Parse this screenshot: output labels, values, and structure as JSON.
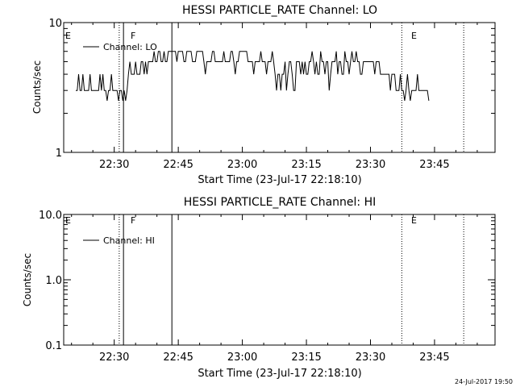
{
  "footer_timestamp": "24-Jul-2017 19:50",
  "chart_data": [
    {
      "type": "line",
      "title": "HESSI PARTICLE_RATE Channel: LO",
      "xlabel": "Start Time (23-Jul-17 22:18:10)",
      "ylabel": "Counts/sec",
      "yscale": "log",
      "ylim": [
        1,
        10
      ],
      "y_ticks": [
        {
          "value": 1,
          "label": "1"
        },
        {
          "value": 10,
          "label": "10"
        }
      ],
      "x_ticks": [
        "22:30",
        "22:45",
        "23:00",
        "23:15",
        "23:30",
        "23:45"
      ],
      "legend": {
        "placement": "top-left",
        "entries": [
          "Channel: LO"
        ]
      },
      "annotations": [
        "E",
        "F",
        "E"
      ],
      "series": [
        {
          "name": "Channel: LO",
          "x_start": "22:21",
          "x_step_seconds": 20,
          "values": [
            3,
            3,
            4,
            3,
            3,
            4,
            3,
            3,
            3,
            3,
            4,
            3,
            3,
            3,
            3,
            3,
            3,
            4,
            3,
            4,
            3,
            3,
            2.5,
            3,
            3,
            4,
            3,
            3,
            3,
            3,
            2.5,
            3,
            3,
            2.5,
            3,
            2.5,
            3,
            4,
            5,
            4,
            4,
            4,
            5,
            4,
            4,
            4,
            5,
            5,
            4,
            5,
            4,
            5,
            5,
            5,
            5,
            6,
            5,
            5,
            6,
            6,
            5,
            5,
            6,
            5,
            5,
            6,
            6,
            6,
            6,
            6,
            6,
            5,
            6,
            6,
            6,
            6,
            5,
            5,
            6,
            6,
            6,
            6,
            5,
            5,
            5,
            6,
            6,
            6,
            6,
            6,
            5,
            4,
            5,
            5,
            5,
            5,
            6,
            6,
            5,
            5,
            5,
            5,
            5,
            5,
            6,
            5,
            5,
            5,
            5,
            6,
            6,
            5,
            4,
            5,
            5,
            6,
            6,
            6,
            6,
            6,
            6,
            5,
            5,
            5,
            5,
            4,
            5,
            5,
            5,
            5,
            6,
            5,
            5,
            5,
            4,
            5,
            5,
            5,
            6,
            5,
            4,
            3,
            4,
            4,
            3,
            4,
            4,
            5,
            3,
            4,
            5,
            5,
            4,
            3,
            3,
            5,
            5,
            5,
            4,
            5,
            4,
            5,
            4,
            4,
            5,
            5,
            6,
            5,
            4,
            5,
            4,
            4,
            6,
            5,
            5,
            4,
            5,
            5,
            3,
            4,
            5,
            5,
            5,
            6,
            4,
            5,
            5,
            4,
            4,
            6,
            5,
            5,
            4,
            5,
            6,
            5,
            5,
            6,
            5,
            5,
            4,
            4,
            5,
            5,
            5,
            5,
            5,
            5,
            5,
            5,
            4,
            5,
            5,
            5,
            4,
            4,
            4,
            4,
            4,
            4,
            4,
            3,
            4,
            4,
            4,
            3,
            3,
            3,
            4,
            3,
            3,
            2.5,
            3,
            4,
            3,
            2.5,
            3,
            3,
            3,
            3,
            4,
            3,
            3,
            3,
            3,
            3,
            3,
            3,
            2.5
          ]
        }
      ],
      "vlines": [
        {
          "time": "22:31:10",
          "style": "dotted"
        },
        {
          "time": "22:32:10",
          "style": "solid"
        },
        {
          "time": "22:43:30",
          "style": "solid"
        },
        {
          "time": "23:37:20",
          "style": "dotted"
        },
        {
          "time": "23:51:50",
          "style": "dotted"
        }
      ]
    },
    {
      "type": "line",
      "title": "HESSI PARTICLE_RATE Channel: HI",
      "xlabel": "Start Time (23-Jul-17 22:18:10)",
      "ylabel": "Counts/sec",
      "yscale": "log",
      "ylim": [
        0.1,
        10
      ],
      "y_ticks": [
        {
          "value": 10,
          "label": "10.0"
        },
        {
          "value": 1,
          "label": "1.0"
        },
        {
          "value": 0.1,
          "label": "0.1"
        }
      ],
      "x_ticks": [
        "22:30",
        "22:45",
        "23:00",
        "23:15",
        "23:30",
        "23:45"
      ],
      "legend": {
        "placement": "top-left",
        "entries": [
          "Channel: HI"
        ]
      },
      "annotations": [
        "E",
        "F",
        "E"
      ],
      "series": [
        {
          "name": "Channel: HI",
          "values": []
        }
      ],
      "vlines": [
        {
          "time": "22:31:10",
          "style": "dotted"
        },
        {
          "time": "22:32:10",
          "style": "solid"
        },
        {
          "time": "22:43:30",
          "style": "solid"
        },
        {
          "time": "23:37:20",
          "style": "dotted"
        },
        {
          "time": "23:51:50",
          "style": "dotted"
        }
      ]
    }
  ]
}
